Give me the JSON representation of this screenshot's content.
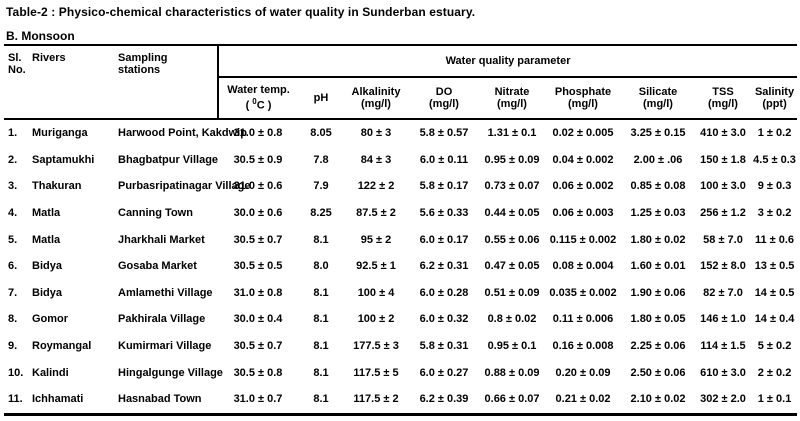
{
  "title": "Table-2 : Physico-chemical characteristics of water quality in Sunderban estuary.",
  "section": "B. Monsoon",
  "table": {
    "group_header": "Water quality parameter",
    "fixed_columns": {
      "sl": {
        "line1": "Sl.",
        "line2": "No."
      },
      "rivers": {
        "line1": "Rivers"
      },
      "stations": {
        "line1": "Sampling",
        "line2": "stations"
      }
    },
    "param_columns": [
      {
        "id": "water-temp",
        "line1": "Water temp.",
        "line2_parts": [
          {
            "t": "( "
          },
          {
            "t": "0",
            "sup": true
          },
          {
            "t": "C )"
          }
        ]
      },
      {
        "id": "ph",
        "line1": "pH"
      },
      {
        "id": "alkalinity",
        "line1": "Alkalinity",
        "line2": "(mg/l)"
      },
      {
        "id": "do",
        "line1": "DO",
        "line2": "(mg/l)"
      },
      {
        "id": "nitrate",
        "line1": "Nitrate",
        "line2": "(mg/l)"
      },
      {
        "id": "phosphate",
        "line1": "Phosphate",
        "line2": "(mg/l)"
      },
      {
        "id": "silicate",
        "line1": "Silicate",
        "line2": "(mg/l)"
      },
      {
        "id": "tss",
        "line1": "TSS",
        "line2": "(mg/l)"
      },
      {
        "id": "salinity",
        "line1": "Salinity",
        "line2": "(ppt)"
      }
    ],
    "rows": [
      [
        "1.",
        "Muriganga",
        "Harwood Point, Kakdwip",
        "31.0 ± 0.8",
        "8.05",
        "80 ± 3",
        "5.8 ± 0.57",
        "1.31 ± 0.1",
        "0.02 ± 0.005",
        "3.25 ± 0.15",
        "410 ± 3.0",
        "1 ± 0.2"
      ],
      [
        "2.",
        "Saptamukhi",
        "Bhagbatpur Village",
        "30.5 ± 0.9",
        "7.8",
        "84 ± 3",
        "6.0 ± 0.11",
        "0.95 ± 0.09",
        "0.04 ± 0.002",
        "2.00 ± .06",
        "150 ± 1.8",
        "4.5 ± 0.3"
      ],
      [
        "3.",
        "Thakuran",
        "Purbasripatinagar Village",
        "31.0 ± 0.6",
        "7.9",
        "122 ± 2",
        "5.8 ± 0.17",
        "0.73 ± 0.07",
        "0.06 ± 0.002",
        "0.85 ± 0.08",
        "100 ± 3.0",
        "9 ± 0.3"
      ],
      [
        "4.",
        "Matla",
        "Canning Town",
        "30.0 ± 0.6",
        "8.25",
        "87.5 ± 2",
        "5.6 ± 0.33",
        "0.44 ± 0.05",
        "0.06 ± 0.003",
        "1.25 ± 0.03",
        "256 ± 1.2",
        "3 ± 0.2"
      ],
      [
        "5.",
        "Matla",
        "Jharkhali Market",
        "30.5 ± 0.7",
        "8.1",
        "95 ± 2",
        "6.0 ± 0.17",
        "0.55 ± 0.06",
        "0.115 ± 0.002",
        "1.80 ± 0.02",
        "58 ± 7.0",
        "11 ± 0.6"
      ],
      [
        "6.",
        "Bidya",
        "Gosaba Market",
        "30.5 ± 0.5",
        "8.0",
        "92.5 ± 1",
        "6.2 ± 0.31",
        "0.47 ± 0.05",
        "0.08 ± 0.004",
        "1.60 ± 0.01",
        "152 ± 8.0",
        "13 ± 0.5"
      ],
      [
        "7.",
        "Bidya",
        "Amlamethi Village",
        "31.0 ± 0.8",
        "8.1",
        "100 ± 4",
        "6.0 ± 0.28",
        "0.51 ± 0.09",
        "0.035 ± 0.002",
        "1.90 ± 0.06",
        "82 ± 7.0",
        "14 ± 0.5"
      ],
      [
        "8.",
        "Gomor",
        "Pakhirala Village",
        "30.0 ± 0.4",
        "8.1",
        "100 ± 2",
        "6.0 ± 0.32",
        "0.8 ± 0.02",
        "0.11 ± 0.006",
        "1.80 ± 0.05",
        "146 ± 1.0",
        "14 ± 0.4"
      ],
      [
        "9.",
        "Roymangal",
        "Kumirmari Village",
        "30.5 ± 0.7",
        "8.1",
        "177.5 ± 3",
        "5.8 ± 0.31",
        "0.95 ± 0.1",
        "0.16 ± 0.008",
        "2.25 ± 0.06",
        "114 ± 1.5",
        "5 ± 0.2"
      ],
      [
        "10.",
        "Kalindi",
        "Hingalgunge Village",
        "30.5 ± 0.8",
        "8.1",
        "117.5 ± 5",
        "6.0 ± 0.27",
        "0.88 ± 0.09",
        "0.20 ± 0.09",
        "2.50 ± 0.06",
        "610 ± 3.0",
        "2 ± 0.2"
      ],
      [
        "11.",
        "Ichhamati",
        "Hasnabad Town",
        "31.0 ± 0.7",
        "8.1",
        "117.5 ± 2",
        "6.2 ± 0.39",
        "0.66 ± 0.07",
        "0.21 ± 0.02",
        "2.10 ± 0.02",
        "302 ± 2.0",
        "1 ± 0.1"
      ]
    ]
  }
}
